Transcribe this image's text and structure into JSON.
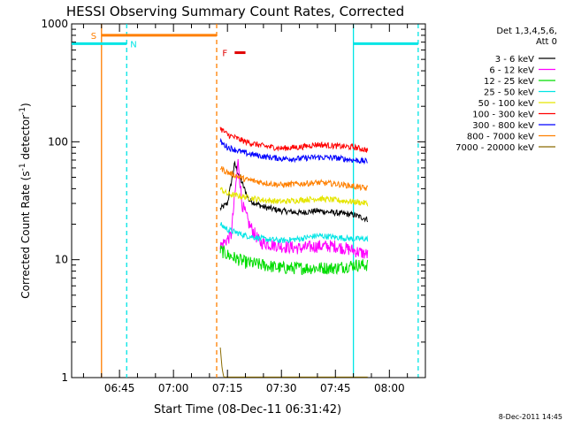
{
  "chart_data": {
    "type": "line",
    "title": "HESSI Observing Summary Count Rates, Corrected",
    "xlabel": "Start Time (08-Dec-11 06:31:42)",
    "ylabel_main": "Corrected Count Rate (s",
    "ylabel_sup1": "-1",
    "ylabel_mid": " detector",
    "ylabel_sup2": "-1",
    "ylabel_end": ")",
    "y_scale": "log",
    "ylim": [
      1,
      1000
    ],
    "xlim": [
      "06:31:42",
      "08:10:00"
    ],
    "x_ticks": [
      "06:45",
      "07:00",
      "07:15",
      "07:30",
      "07:45",
      "08:00"
    ],
    "y_ticks": [
      "1",
      "10",
      "100",
      "1000"
    ],
    "timestamp": "8-Dec-2011 14:45",
    "legend_header": [
      "Det 1,3,4,5,6,",
      "Att 0"
    ],
    "legend_position": "top-right outside plot",
    "flags": {
      "saa": {
        "label": "S",
        "start": "06:40",
        "end": "07:12",
        "color": "#ff7f00"
      },
      "night": {
        "label": "N",
        "start": "06:31:42",
        "end": "06:47",
        "color": "#00e5e5"
      },
      "night2": {
        "start": "07:50",
        "end": "08:08",
        "color": "#00e5e5"
      },
      "flare": {
        "label": "F",
        "start": "07:17",
        "end": "07:20",
        "color": "#e00000"
      }
    },
    "vertical_markers": [
      {
        "time": "06:40",
        "style": "solid",
        "color": "#ff7f00"
      },
      {
        "time": "06:47",
        "style": "dashed",
        "color": "#00e5e5"
      },
      {
        "time": "07:12",
        "style": "dashed",
        "color": "#ff7f00"
      },
      {
        "time": "07:50",
        "style": "solid",
        "color": "#00e5e5"
      },
      {
        "time": "08:08",
        "style": "dashed",
        "color": "#00e5e5"
      }
    ],
    "series": [
      {
        "name": "3 - 6 keV",
        "color": "#000000",
        "x": [
          "07:13",
          "07:15",
          "07:17",
          "07:19",
          "07:21",
          "07:25",
          "07:30",
          "07:35",
          "07:40",
          "07:45",
          "07:50",
          "07:54"
        ],
        "y": [
          27,
          30,
          65,
          45,
          32,
          28,
          26,
          25,
          26,
          25,
          24,
          22
        ]
      },
      {
        "name": "6 - 12 keV",
        "color": "#ff00ff",
        "x": [
          "07:13",
          "07:16",
          "07:18",
          "07:19",
          "07:21",
          "07:24",
          "07:30",
          "07:35",
          "07:40",
          "07:45",
          "07:50",
          "07:54"
        ],
        "y": [
          13,
          16,
          70,
          30,
          20,
          14,
          13,
          12.5,
          13,
          13,
          12,
          11
        ]
      },
      {
        "name": "12 - 25 keV",
        "color": "#00dd00",
        "x": [
          "07:13",
          "07:15",
          "07:20",
          "07:25",
          "07:30",
          "07:35",
          "07:40",
          "07:45",
          "07:50",
          "07:54"
        ],
        "y": [
          12,
          11,
          9.5,
          9,
          8.5,
          8.5,
          8.5,
          8.5,
          9,
          9
        ]
      },
      {
        "name": "25 - 50 keV",
        "color": "#00e5e5",
        "x": [
          "07:13",
          "07:15",
          "07:20",
          "07:25",
          "07:30",
          "07:35",
          "07:40",
          "07:45",
          "07:50",
          "07:54"
        ],
        "y": [
          20,
          18,
          16,
          15,
          14.5,
          15,
          16,
          15.5,
          15,
          15
        ]
      },
      {
        "name": "50 - 100 keV",
        "color": "#e5e500",
        "x": [
          "07:13",
          "07:15",
          "07:20",
          "07:25",
          "07:30",
          "07:35",
          "07:40",
          "07:45",
          "07:50",
          "07:54"
        ],
        "y": [
          40,
          36,
          34,
          32,
          31,
          32,
          33,
          32,
          31,
          30
        ]
      },
      {
        "name": "100 - 300 keV",
        "color": "#ff0000",
        "x": [
          "07:13",
          "07:15",
          "07:20",
          "07:25",
          "07:30",
          "07:35",
          "07:40",
          "07:45",
          "07:50",
          "07:54"
        ],
        "y": [
          130,
          115,
          100,
          92,
          88,
          90,
          95,
          92,
          90,
          85
        ]
      },
      {
        "name": "300 - 800 keV",
        "color": "#0000ff",
        "x": [
          "07:13",
          "07:15",
          "07:20",
          "07:25",
          "07:30",
          "07:35",
          "07:40",
          "07:45",
          "07:50",
          "07:54"
        ],
        "y": [
          100,
          90,
          80,
          75,
          72,
          72,
          74,
          73,
          70,
          68
        ]
      },
      {
        "name": "800 - 7000 keV",
        "color": "#ff8000",
        "x": [
          "07:13",
          "07:15",
          "07:20",
          "07:25",
          "07:30",
          "07:35",
          "07:40",
          "07:45",
          "07:50",
          "07:54"
        ],
        "y": [
          60,
          55,
          48,
          45,
          43,
          44,
          45,
          44,
          42,
          40
        ]
      },
      {
        "name": "7000 - 20000 keV",
        "color": "#8b6b00",
        "x": [
          "07:13",
          "07:13:30",
          "07:14",
          "07:30",
          "07:50",
          "07:54"
        ],
        "y": [
          1.8,
          1.2,
          1,
          1,
          1,
          1
        ]
      }
    ]
  }
}
